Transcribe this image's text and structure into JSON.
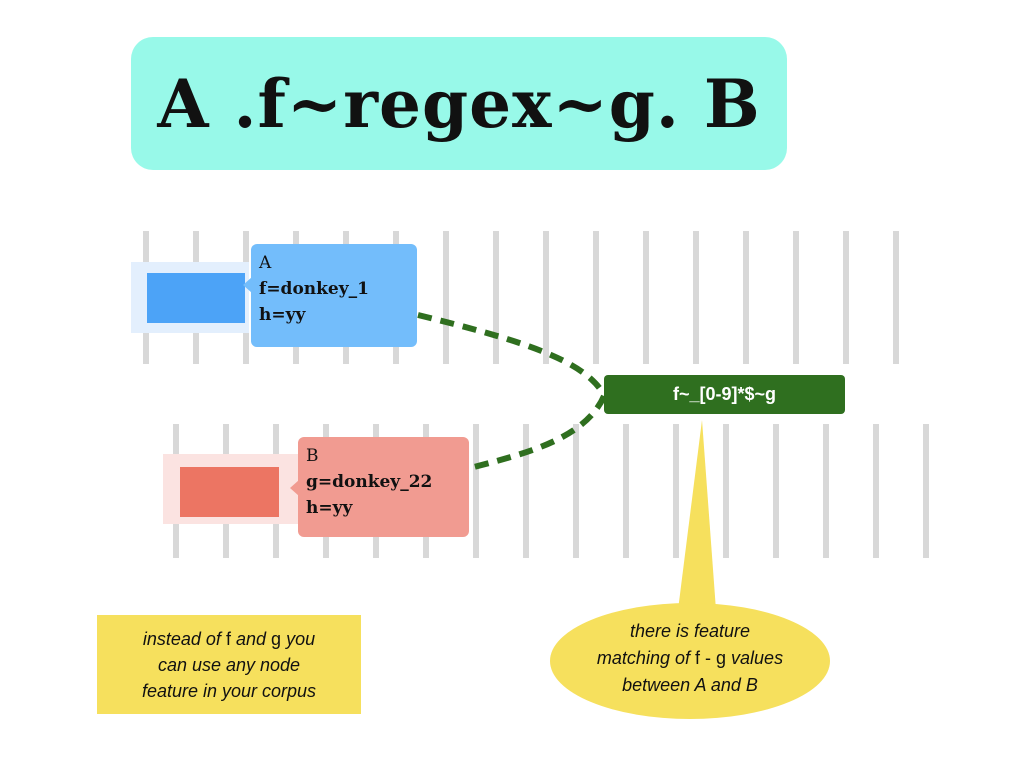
{
  "title": "A .f~regex~g. B",
  "node_a": {
    "name": "A",
    "feature_f": "f=donkey_1",
    "feature_h": "h=yy",
    "color": "#4ca3f7"
  },
  "node_b": {
    "name": "B",
    "feature_g": "g=donkey_22",
    "feature_h": "h=yy",
    "color": "#ec7563"
  },
  "relation": {
    "label": "f~_[0-9]*$~g",
    "color": "#2f6f1f"
  },
  "note_left": {
    "line1_pre": "instead of",
    "f": "f",
    "and": "and",
    "g": "g",
    "line1_post": "you",
    "line2": "can use any node",
    "line3": "feature in your corpus"
  },
  "note_bubble": {
    "line1": "there is feature",
    "line2_pre": "matching of",
    "f_g": "f - g",
    "line2_post": "values",
    "line3": "between A and B"
  }
}
